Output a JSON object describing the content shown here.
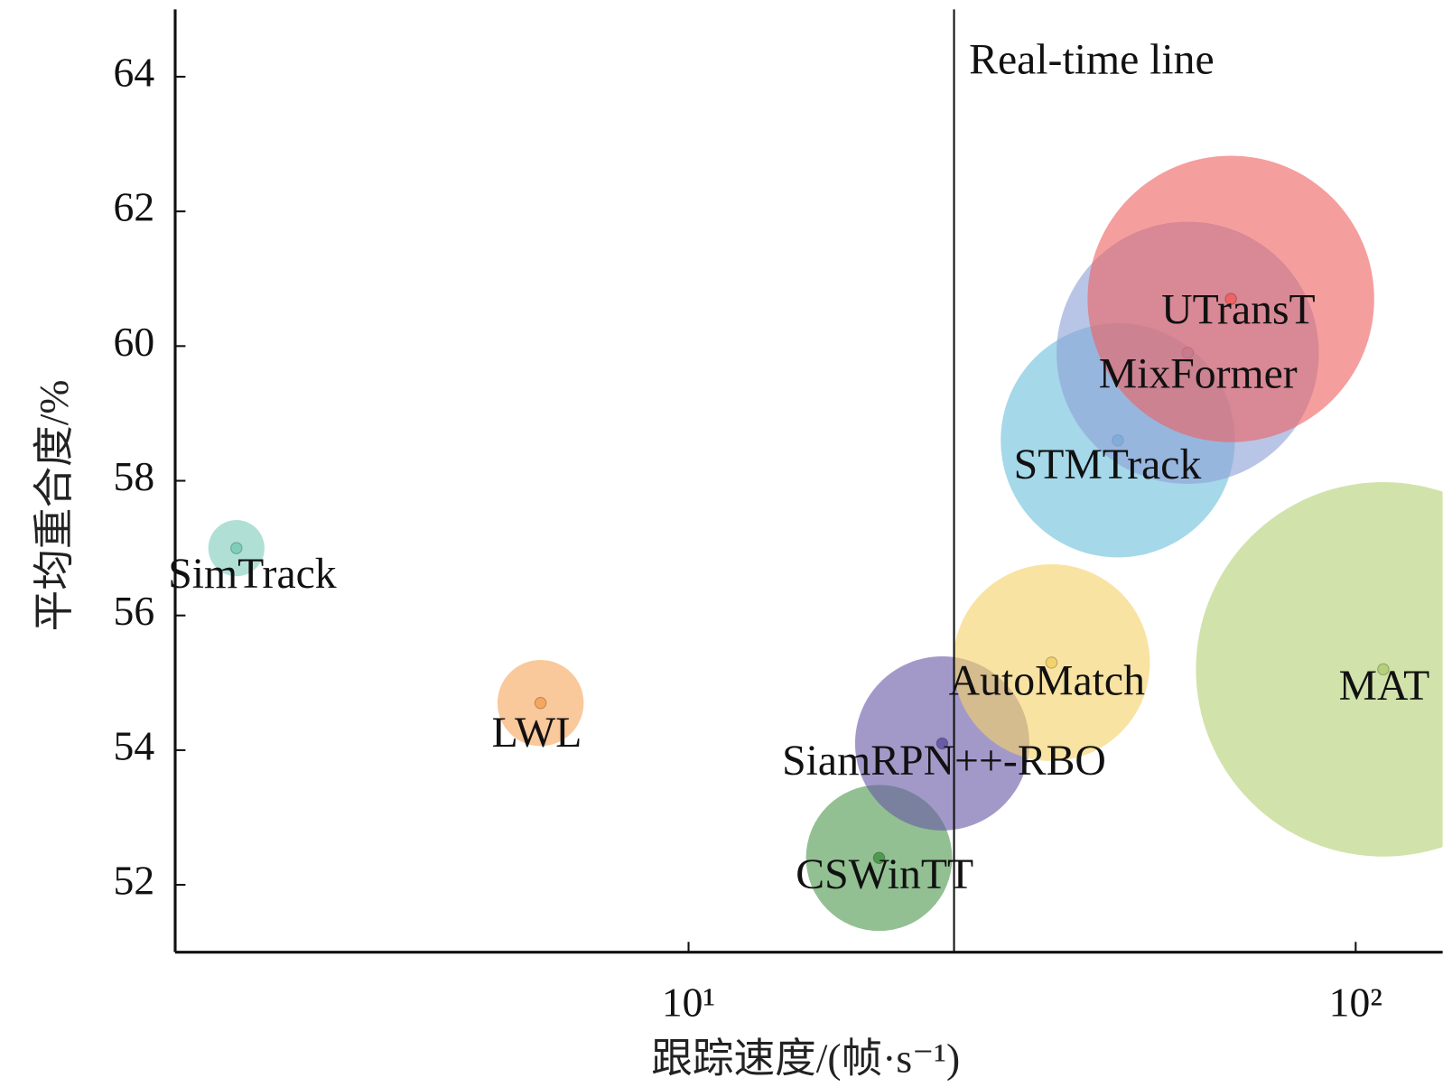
{
  "chart_data": {
    "type": "bubble",
    "xlabel": "跟踪速度/(帧·s⁻¹)",
    "ylabel": "平均重合度/%",
    "xscale": "log",
    "xlim": [
      1.7,
      135
    ],
    "ylim": [
      51,
      65
    ],
    "xticks": [
      {
        "value": 10,
        "label": "10¹"
      },
      {
        "value": 100,
        "label": "10²"
      }
    ],
    "yticks": [
      52,
      54,
      56,
      58,
      60,
      62,
      64
    ],
    "annotations": [
      {
        "text": "Real-time line",
        "x": 25
      }
    ],
    "points": [
      {
        "name": "SimTrack",
        "x": 2.1,
        "y": 57.0,
        "size": 3.0,
        "color": "#7fcdbb"
      },
      {
        "name": "LWL",
        "x": 6,
        "y": 54.7,
        "size": 4.6,
        "color": "#f6a75e"
      },
      {
        "name": "CSWinTT",
        "x": 19.3,
        "y": 52.4,
        "size": 7.8,
        "color": "#4f9a4f"
      },
      {
        "name": "SiamRPN++-RBO",
        "x": 24,
        "y": 54.1,
        "size": 9.3,
        "color": "#6a5aa8"
      },
      {
        "name": "AutoMatch",
        "x": 35,
        "y": 55.3,
        "size": 10.5,
        "color": "#f3d26a"
      },
      {
        "name": "STMTrack",
        "x": 44,
        "y": 58.6,
        "size": 12.5,
        "color": "#6ec0dc"
      },
      {
        "name": "MixFormer",
        "x": 56,
        "y": 59.9,
        "size": 14.0,
        "color": "#8ea2d6"
      },
      {
        "name": "UTransT",
        "x": 65,
        "y": 60.7,
        "size": 15.3,
        "color": "#ee6363"
      },
      {
        "name": "MAT",
        "x": 110,
        "y": 55.2,
        "size": 20.0,
        "color": "#b4d078"
      }
    ]
  }
}
